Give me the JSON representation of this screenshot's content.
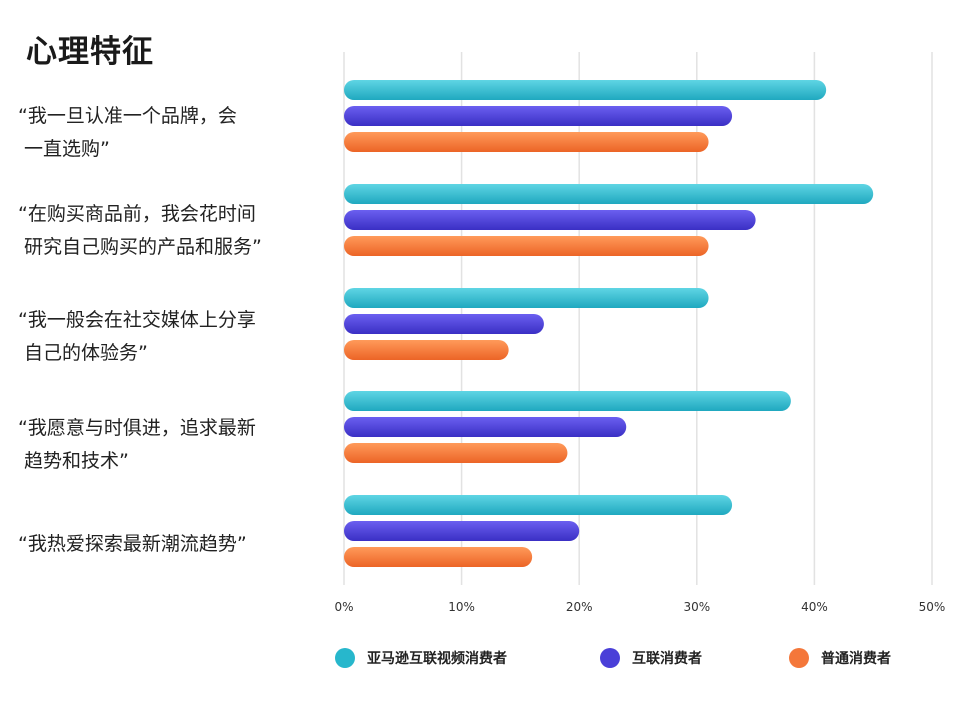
{
  "title": "心理特征",
  "chart_data": {
    "type": "bar",
    "orientation": "horizontal",
    "title": "心理特征",
    "categories": [
      "“我一旦认准一个品牌，会\n 一直选购”",
      "“在购买商品前，我会花时间\n 研究自己购买的产品和服务”",
      "“我一般会在社交媒体上分享\n 自己的体验务”",
      "“我愿意与时俱进，追求最新\n 趋势和技术”",
      "“我热爱探索最新潮流趋势”"
    ],
    "series": [
      {
        "name": "亚马逊互联视频消费者",
        "color": "#27b7cc",
        "values": [
          41,
          45,
          31,
          38,
          33
        ]
      },
      {
        "name": "互联消费者",
        "color": "#4a3fd8",
        "values": [
          33,
          35,
          17,
          24,
          20
        ]
      },
      {
        "name": "普通消费者",
        "color": "#f4773a",
        "values": [
          31,
          31,
          14,
          19,
          16
        ]
      }
    ],
    "xlim": [
      0,
      50
    ],
    "xticks": [
      "0%",
      "10%",
      "20%",
      "30%",
      "40%",
      "50%"
    ],
    "grid": true,
    "legend_position": "bottom"
  }
}
